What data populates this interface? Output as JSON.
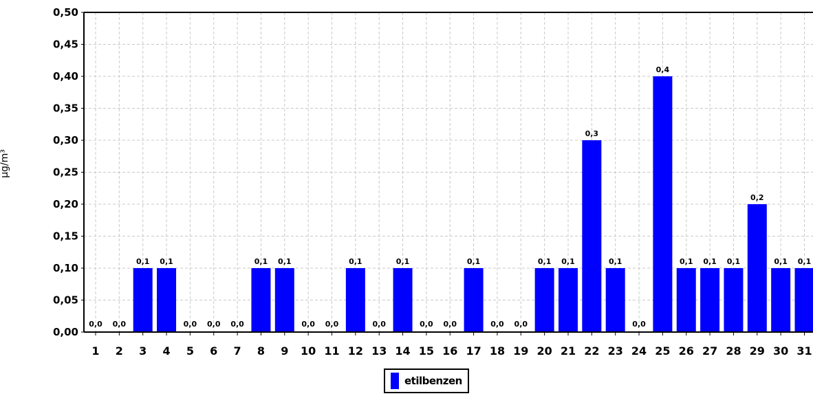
{
  "chart_data": {
    "type": "bar",
    "categories": [
      "1",
      "2",
      "3",
      "4",
      "5",
      "6",
      "7",
      "8",
      "9",
      "10",
      "11",
      "12",
      "13",
      "14",
      "15",
      "16",
      "17",
      "18",
      "19",
      "20",
      "21",
      "22",
      "23",
      "24",
      "25",
      "26",
      "27",
      "28",
      "29",
      "30",
      "31"
    ],
    "series": [
      {
        "name": "etilbenzen",
        "color": "#0000ff",
        "values": [
          0.0,
          0.0,
          0.1,
          0.1,
          0.0,
          0.0,
          0.0,
          0.1,
          0.1,
          0.0,
          0.0,
          0.1,
          0.0,
          0.1,
          0.0,
          0.0,
          0.1,
          0.0,
          0.0,
          0.1,
          0.1,
          0.3,
          0.1,
          0.0,
          0.4,
          0.1,
          0.1,
          0.1,
          0.2,
          0.1,
          0.1
        ],
        "data_labels": [
          "0,0",
          "0,0",
          "0,1",
          "0,1",
          "0,0",
          "0,0",
          "0,0",
          "0,1",
          "0,1",
          "0,0",
          "0,0",
          "0,1",
          "0,0",
          "0,1",
          "0,0",
          "0,0",
          "0,1",
          "0,0",
          "0,0",
          "0,1",
          "0,1",
          "0,3",
          "0,1",
          "0,0",
          "0,4",
          "0,1",
          "0,1",
          "0,1",
          "0,2",
          "0,1",
          "0,1"
        ]
      }
    ],
    "ylabel": "µg/m³",
    "xlabel": "",
    "ylim": [
      0,
      0.5
    ],
    "yticks": [
      0.0,
      0.05,
      0.1,
      0.15,
      0.2,
      0.25,
      0.3,
      0.35,
      0.4,
      0.45,
      0.5
    ],
    "ytick_labels": [
      "0,00",
      "0,05",
      "0,10",
      "0,15",
      "0,20",
      "0,25",
      "0,30",
      "0,35",
      "0,40",
      "0,45",
      "0,50"
    ],
    "grid": true,
    "legend_position": "bottom-center"
  }
}
